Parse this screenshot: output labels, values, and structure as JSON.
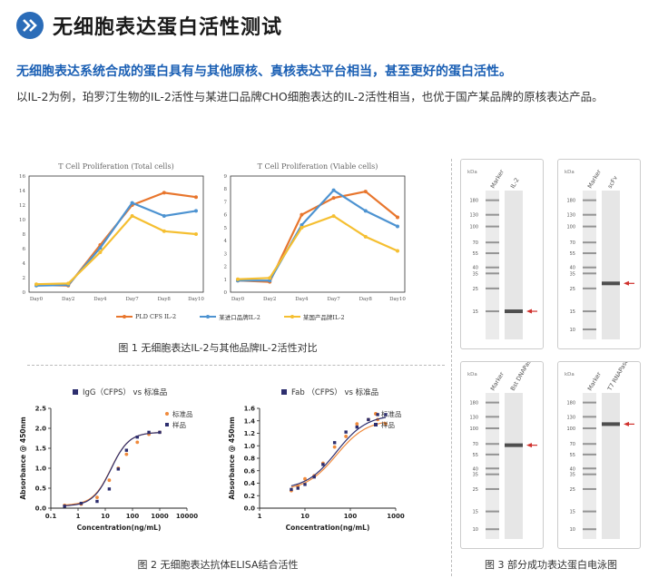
{
  "header": {
    "title": "无细胞表达蛋白活性测试",
    "icon": "double-chevron-right-icon"
  },
  "subtitle": "无细胞表达系统合成的蛋白具有与其他原核、真核表达平台相当，甚至更好的蛋白活性。",
  "description": "以IL-2为例，珀罗汀生物的IL-2活性与某进口品牌CHO细胞表达的IL-2活性相当，也优于国产某品牌的原核表达产品。",
  "fig1": {
    "caption": "图 1 无细胞表达IL-2与其他品牌IL-2活性对比",
    "legend": [
      "PLD CFS IL-2",
      "某进口品牌IL-2",
      "某国产品牌IL-2"
    ],
    "colors": [
      "#e8762d",
      "#4d93d1",
      "#f5bf31"
    ],
    "chart_data": [
      {
        "type": "line",
        "title": "T Cell Proliferation (Total cells)",
        "categories": [
          "Day0",
          "Day2",
          "Day4",
          "Day7",
          "Day8",
          "Day10"
        ],
        "yticks": [
          "0",
          "2",
          "4",
          "6",
          "8",
          "10",
          "12",
          "14",
          "16"
        ],
        "ylim": [
          0,
          16
        ],
        "series": [
          {
            "name": "PLD CFS IL-2",
            "values": [
              1,
              0.9,
              6.5,
              12,
              13.7,
              13.1
            ]
          },
          {
            "name": "某进口品牌IL-2",
            "values": [
              0.9,
              1,
              6.1,
              12.3,
              10.5,
              11.2
            ]
          },
          {
            "name": "某国产品牌IL-2",
            "values": [
              1.1,
              1.2,
              5.5,
              10.5,
              8.4,
              8
            ]
          }
        ]
      },
      {
        "type": "line",
        "title": "T Cell Proliferation (Viable cells)",
        "categories": [
          "Day0",
          "Day2",
          "Day4",
          "Day7",
          "Day8",
          "Day10"
        ],
        "yticks": [
          "0",
          "1",
          "2",
          "3",
          "4",
          "5",
          "6",
          "7",
          "8",
          "9"
        ],
        "ylim": [
          0,
          9
        ],
        "series": [
          {
            "name": "PLD CFS IL-2",
            "values": [
              0.9,
              0.8,
              6,
              7.3,
              7.8,
              5.8
            ]
          },
          {
            "name": "某进口品牌IL-2",
            "values": [
              0.9,
              0.9,
              5.2,
              7.9,
              6.3,
              5.1
            ]
          },
          {
            "name": "某国产品牌IL-2",
            "values": [
              1,
              1.1,
              5,
              5.9,
              4.3,
              3.2
            ]
          }
        ]
      }
    ]
  },
  "fig2": {
    "caption": "图 2 无细胞表达抗体ELISA结合活性",
    "chart_data": [
      {
        "type": "scatter",
        "title": "IgG（CFPS） vs 标准品",
        "xlabel": "Concentration(ng/mL)",
        "ylabel": "Absorbance @ 450nm",
        "xticks": [
          "0.1",
          "1",
          "10",
          "100",
          "1000",
          "10000"
        ],
        "yticks": [
          "0.0",
          "0.5",
          "1.0",
          "1.5",
          "2.0",
          "2.5"
        ],
        "ylim": [
          0,
          2.5
        ],
        "series": [
          {
            "name": "标准品",
            "color": "#f08a3c",
            "x": [
              0.32,
              1.3,
              5,
              14,
              30,
              60,
              150,
              400,
              1000
            ],
            "y": [
              0.07,
              0.1,
              0.27,
              0.7,
              1.0,
              1.35,
              1.65,
              1.85,
              1.9
            ]
          },
          {
            "name": "样品",
            "color": "#2d2e6e",
            "x": [
              0.32,
              1.3,
              5,
              14,
              30,
              60,
              150,
              400,
              1000
            ],
            "y": [
              0.05,
              0.12,
              0.17,
              0.48,
              0.98,
              1.45,
              1.78,
              1.9,
              1.9
            ]
          }
        ]
      },
      {
        "type": "scatter",
        "title": "Fab （CFPS） vs 标准品",
        "xlabel": "Concentration(ng/mL)",
        "ylabel": "Absorbance @ 450nm",
        "xticks": [
          "1",
          "10",
          "100",
          "1000"
        ],
        "yticks": [
          "0.0",
          "0.2",
          "0.4",
          "0.6",
          "0.8",
          "1.0",
          "1.2",
          "1.4",
          "1.6"
        ],
        "ylim": [
          0,
          1.6
        ],
        "series": [
          {
            "name": "标准品",
            "color": "#f08a3c",
            "x": [
              5,
              7,
              10,
              16,
              25,
              45,
              80,
              140,
              250,
              400,
              600
            ],
            "y": [
              0.28,
              0.35,
              0.47,
              0.52,
              0.72,
              0.98,
              1.15,
              1.35,
              1.42,
              1.42,
              1.35
            ]
          },
          {
            "name": "样品",
            "color": "#2d2e6e",
            "x": [
              5,
              7,
              10,
              16,
              25,
              45,
              80,
              140,
              250,
              400,
              600
            ],
            "y": [
              0.3,
              0.32,
              0.38,
              0.5,
              0.7,
              1.05,
              1.22,
              1.3,
              1.42,
              1.5,
              1.5
            ]
          }
        ]
      }
    ]
  },
  "fig3": {
    "caption": "图 3 部分成功表达蛋白电泳图",
    "kda": "kDa",
    "marker_label": "Marker",
    "gels": [
      {
        "sample": "IL-2",
        "marks": [
          "180",
          "130",
          "100",
          "70",
          "55",
          "40",
          "35",
          "25",
          "15"
        ],
        "arrow_kda": 15
      },
      {
        "sample": "scFv",
        "marks": [
          "180",
          "130",
          "100",
          "70",
          "55",
          "40",
          "35",
          "25",
          "15",
          "10"
        ],
        "arrow_kda": 28
      },
      {
        "sample": "Bst DNAPase",
        "marks": [
          "180",
          "130",
          "100",
          "70",
          "55",
          "40",
          "35",
          "25",
          "15",
          "10"
        ],
        "arrow_kda": 68
      },
      {
        "sample": "T7 RNAPase",
        "marks": [
          "180",
          "130",
          "100",
          "70",
          "55",
          "40",
          "35",
          "25",
          "15",
          "10"
        ],
        "arrow_kda": 110
      }
    ]
  }
}
